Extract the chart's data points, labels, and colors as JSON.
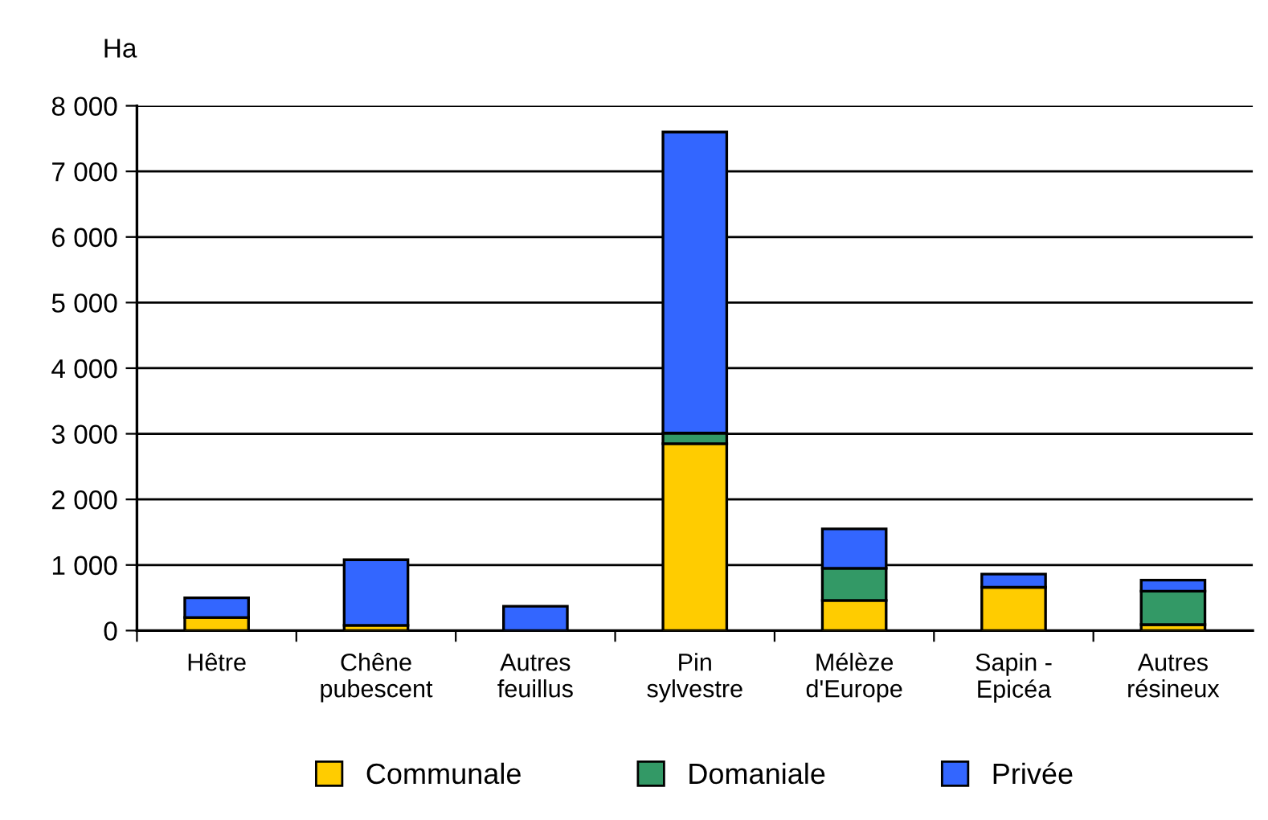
{
  "chart_data": {
    "type": "bar",
    "stacked": true,
    "ylabel": "Ha",
    "categories": [
      "Hêtre",
      "Chêne\npubescent",
      "Autres\nfeuillus",
      "Pin\nsylvestre",
      "Mélèze\nd'Europe",
      "Sapin -\nEpicéa",
      "Autres\nrésineux"
    ],
    "series": [
      {
        "name": "Communale",
        "color": "#ffcc00",
        "values": [
          200,
          80,
          null,
          2850,
          460,
          660,
          90
        ]
      },
      {
        "name": "Domaniale",
        "color": "#339966",
        "values": [
          null,
          null,
          null,
          160,
          490,
          null,
          510
        ]
      },
      {
        "name": "Privée",
        "color": "#3366ff",
        "values": [
          300,
          1000,
          370,
          4590,
          600,
          200,
          170
        ]
      }
    ],
    "ylim": [
      0,
      8000
    ],
    "yticks": [
      {
        "value": 0,
        "label": "0"
      },
      {
        "value": 1000,
        "label": "1 000"
      },
      {
        "value": 2000,
        "label": "2 000"
      },
      {
        "value": 3000,
        "label": "3 000"
      },
      {
        "value": 4000,
        "label": "4 000"
      },
      {
        "value": 5000,
        "label": "5 000"
      },
      {
        "value": 6000,
        "label": "6 000"
      },
      {
        "value": 7000,
        "label": "7 000"
      },
      {
        "value": 8000,
        "label": "8 000"
      }
    ],
    "grid": "y",
    "legend": "bottom"
  }
}
